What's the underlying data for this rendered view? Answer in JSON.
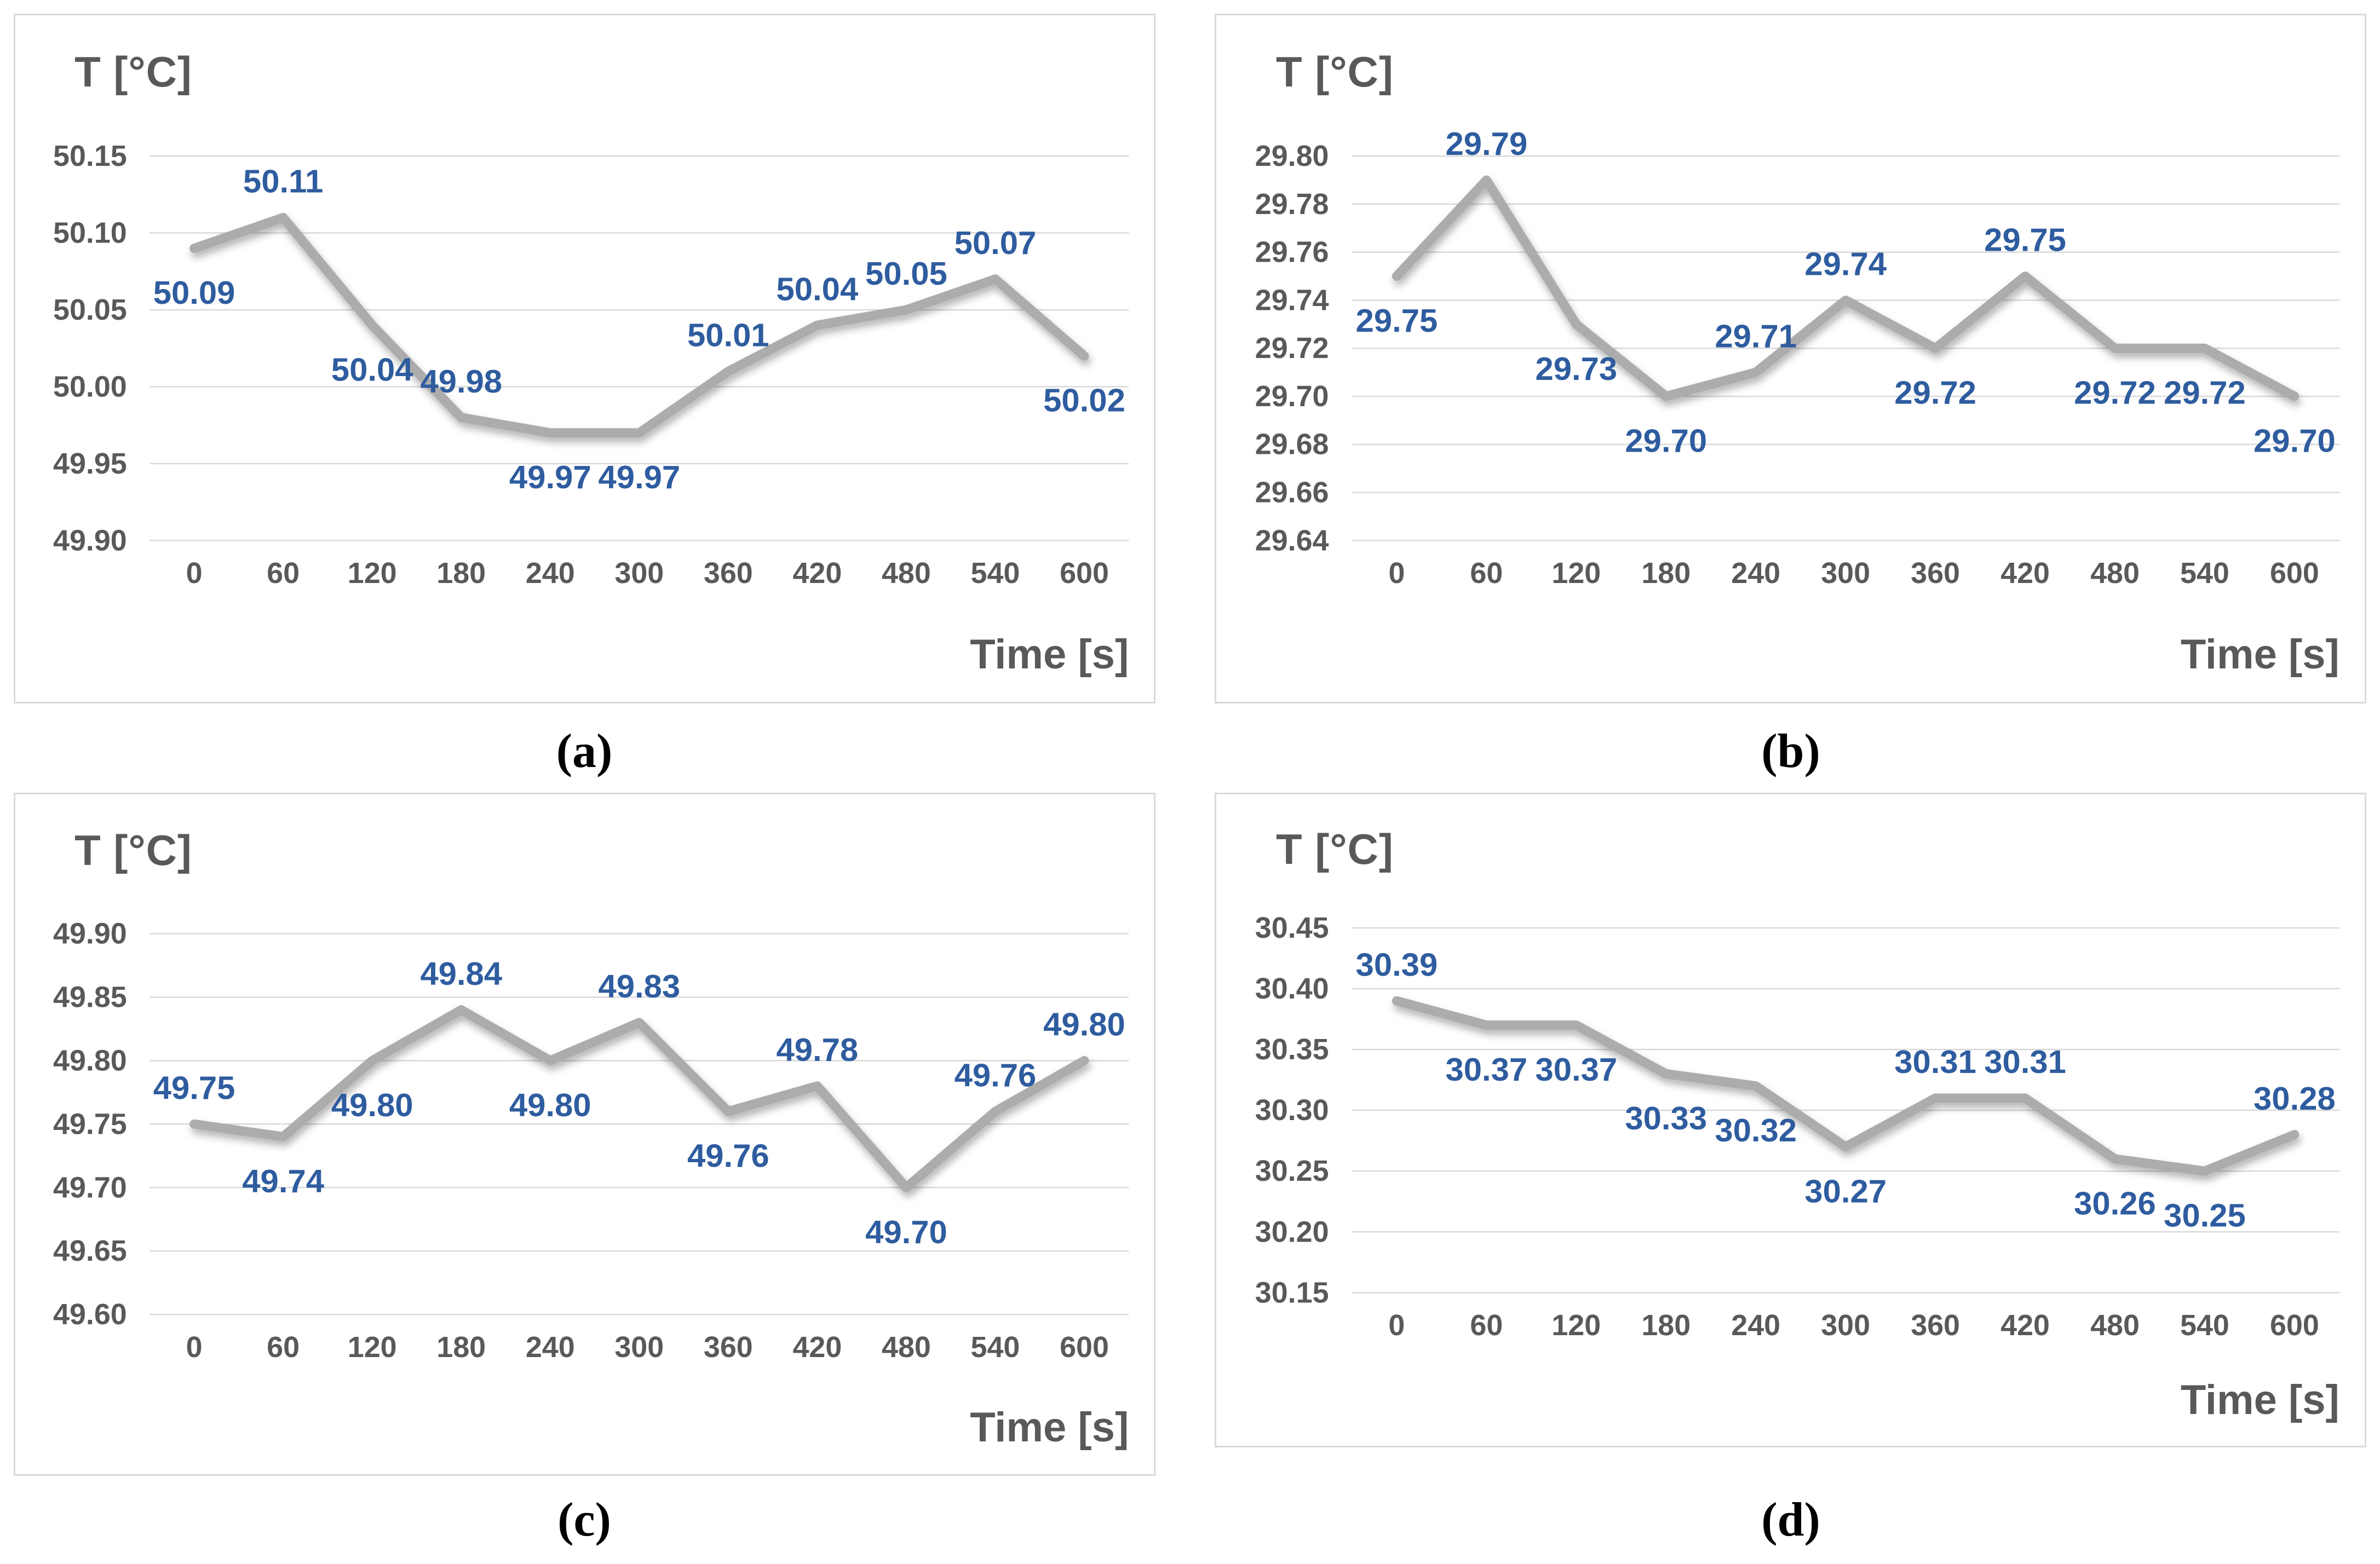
{
  "colors": {
    "line_gray": "#ACACAC",
    "label_blue": "#2E5C9F",
    "axis_text": "#595959",
    "grid": "#d9d9d9",
    "panel_border": "#d9d9d9",
    "caption_black": "#000000",
    "background": "#ffffff"
  },
  "chart_data": [
    {
      "id": "a",
      "type": "line",
      "caption": "(a)",
      "title": "T [°C]",
      "xlabel": "Time [s]",
      "x": [
        0,
        60,
        120,
        180,
        240,
        300,
        360,
        420,
        480,
        540,
        600
      ],
      "x_tick_labels": [
        "0",
        "60",
        "120",
        "180",
        "240",
        "300",
        "360",
        "420",
        "480",
        "540",
        "600"
      ],
      "values": [
        50.09,
        50.11,
        50.04,
        49.98,
        49.97,
        49.97,
        50.01,
        50.04,
        50.05,
        50.07,
        50.02
      ],
      "point_labels": [
        "50.09",
        "50.11",
        "50.04",
        "49.98",
        "49.97",
        "49.97",
        "50.01",
        "50.04",
        "50.05",
        "50.07",
        "50.02"
      ],
      "label_positions": [
        "below",
        "above",
        "below",
        "above",
        "below",
        "below",
        "above",
        "above",
        "above",
        "above",
        "below"
      ],
      "ylim": [
        49.9,
        50.15
      ],
      "y_ticks": {
        "values": [
          50.15,
          50.1,
          50.05,
          50.0,
          49.95,
          49.9
        ],
        "labels": [
          "50.15",
          "50.10",
          "50.05",
          "50.00",
          "49.95",
          "49.90"
        ]
      },
      "grid": true,
      "legend": "none"
    },
    {
      "id": "b",
      "type": "line",
      "caption": "(b)",
      "title": "T [°C]",
      "xlabel": "Time [s]",
      "x": [
        0,
        60,
        120,
        180,
        240,
        300,
        360,
        420,
        480,
        540,
        600
      ],
      "x_tick_labels": [
        "0",
        "60",
        "120",
        "180",
        "240",
        "300",
        "360",
        "420",
        "480",
        "540",
        "600"
      ],
      "values": [
        29.75,
        29.79,
        29.73,
        29.7,
        29.71,
        29.74,
        29.72,
        29.75,
        29.72,
        29.72,
        29.7
      ],
      "point_labels": [
        "29.75",
        "29.79",
        "29.73",
        "29.70",
        "29.71",
        "29.74",
        "29.72",
        "29.75",
        "29.72",
        "29.72",
        "29.70"
      ],
      "label_positions": [
        "below",
        "above",
        "below",
        "below",
        "above",
        "above",
        "below",
        "above",
        "below",
        "below",
        "below"
      ],
      "ylim": [
        29.64,
        29.8
      ],
      "y_ticks": {
        "values": [
          29.8,
          29.78,
          29.76,
          29.74,
          29.72,
          29.7,
          29.68,
          29.66,
          29.64
        ],
        "labels": [
          "29.80",
          "29.78",
          "29.76",
          "29.74",
          "29.72",
          "29.70",
          "29.68",
          "29.66",
          "29.64"
        ]
      },
      "grid": true,
      "legend": "none"
    },
    {
      "id": "c",
      "type": "line",
      "caption": "(c)",
      "title": "T [°C]",
      "xlabel": "Time [s]",
      "x": [
        0,
        60,
        120,
        180,
        240,
        300,
        360,
        420,
        480,
        540,
        600
      ],
      "x_tick_labels": [
        "0",
        "60",
        "120",
        "180",
        "240",
        "300",
        "360",
        "420",
        "480",
        "540",
        "600"
      ],
      "values": [
        49.75,
        49.74,
        49.8,
        49.84,
        49.8,
        49.83,
        49.76,
        49.78,
        49.7,
        49.76,
        49.8
      ],
      "point_labels": [
        "49.75",
        "49.74",
        "49.80",
        "49.84",
        "49.80",
        "49.83",
        "49.76",
        "49.78",
        "49.70",
        "49.76",
        "49.80"
      ],
      "label_positions": [
        "above",
        "below",
        "below",
        "above",
        "below",
        "above",
        "below",
        "above",
        "below",
        "above",
        "above"
      ],
      "ylim": [
        49.6,
        49.9
      ],
      "y_ticks": {
        "values": [
          49.9,
          49.85,
          49.8,
          49.75,
          49.7,
          49.65,
          49.6
        ],
        "labels": [
          "49.90",
          "49.85",
          "49.80",
          "49.75",
          "49.70",
          "49.65",
          "49.60"
        ]
      },
      "grid": true,
      "legend": "none"
    },
    {
      "id": "d",
      "type": "line",
      "caption": "(d)",
      "title": "T [°C]",
      "xlabel": "Time [s]",
      "x": [
        0,
        60,
        120,
        180,
        240,
        300,
        360,
        420,
        480,
        540,
        600
      ],
      "x_tick_labels": [
        "0",
        "60",
        "120",
        "180",
        "240",
        "300",
        "360",
        "420",
        "480",
        "540",
        "600"
      ],
      "values": [
        30.39,
        30.37,
        30.37,
        30.33,
        30.32,
        30.27,
        30.31,
        30.31,
        30.26,
        30.25,
        30.28
      ],
      "point_labels": [
        "30.39",
        "30.37",
        "30.37",
        "30.33",
        "30.32",
        "30.27",
        "30.31",
        "30.31",
        "30.26",
        "30.25",
        "30.28"
      ],
      "label_positions": [
        "above",
        "below",
        "below",
        "below",
        "below",
        "below",
        "above",
        "above",
        "below",
        "below",
        "above"
      ],
      "ylim": [
        30.15,
        30.45
      ],
      "y_ticks": {
        "values": [
          30.45,
          30.4,
          30.35,
          30.3,
          30.25,
          30.2,
          30.15
        ],
        "labels": [
          "30.45",
          "30.40",
          "30.35",
          "30.30",
          "30.25",
          "30.20",
          "30.15"
        ]
      },
      "grid": true,
      "legend": "none"
    }
  ]
}
